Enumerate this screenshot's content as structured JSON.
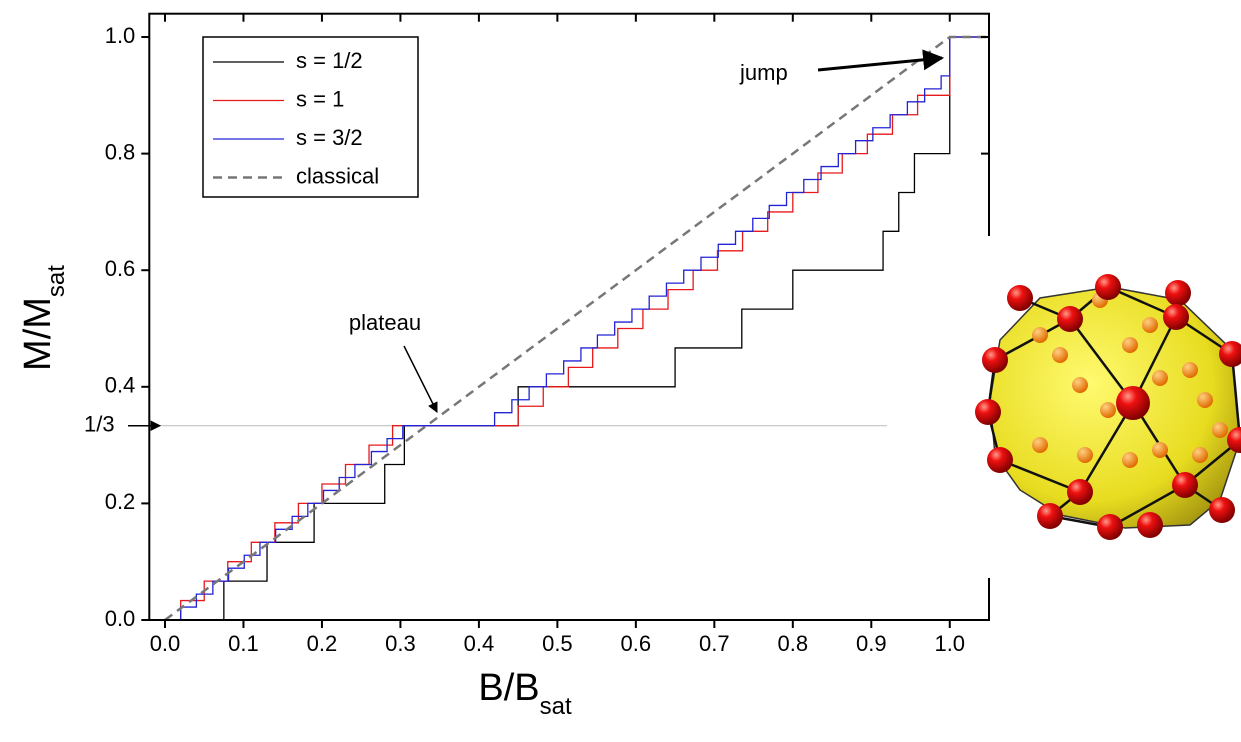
{
  "chart_data": {
    "type": "line",
    "x_label": [
      "B/B",
      "sat"
    ],
    "y_label": [
      "M/M",
      "sat"
    ],
    "xlim": [
      -0.02,
      1.05
    ],
    "ylim": [
      0,
      1.04
    ],
    "xticks": [
      {
        "value": 0,
        "label": "0.0"
      },
      {
        "value": 0.1,
        "label": "0.1"
      },
      {
        "value": 0.2,
        "label": "0.2"
      },
      {
        "value": 0.3,
        "label": "0.3"
      },
      {
        "value": 0.4,
        "label": "0.4"
      },
      {
        "value": 0.5,
        "label": "0.5"
      },
      {
        "value": 0.6,
        "label": "0.6"
      },
      {
        "value": 0.7,
        "label": "0.7"
      },
      {
        "value": 0.8,
        "label": "0.8"
      },
      {
        "value": 0.9,
        "label": "0.9"
      },
      {
        "value": 1,
        "label": "1.0"
      }
    ],
    "yticks": [
      {
        "value": 0,
        "label": "0.0"
      },
      {
        "value": 0.2,
        "label": "0.2"
      },
      {
        "value": 0.4,
        "label": "0.4"
      },
      {
        "value": 0.6,
        "label": "0.6"
      },
      {
        "value": 0.8,
        "label": "0.8"
      },
      {
        "value": 1,
        "label": "1.0"
      }
    ],
    "legend": "upper left",
    "series": [
      {
        "name": "s = 1/2",
        "color": "#000000",
        "drawstyle": "steps-post",
        "dash": false,
        "x": [
          0,
          0.075,
          0.13,
          0.19,
          0.28,
          0.305,
          0.45,
          0.65,
          0.735,
          0.8,
          0.915,
          0.935,
          0.955,
          1.0,
          1.05
        ],
        "values": [
          0,
          0.0667,
          0.1333,
          0.2,
          0.2667,
          0.3333,
          0.4,
          0.4667,
          0.5333,
          0.6,
          0.6667,
          0.7333,
          0.8,
          1.0,
          1.0
        ]
      },
      {
        "name": "s = 1",
        "color": "#e8191b",
        "drawstyle": "steps-post",
        "dash": false,
        "x": [
          0,
          0.02,
          0.05,
          0.08,
          0.11,
          0.14,
          0.17,
          0.2,
          0.23,
          0.26,
          0.29,
          0.45,
          0.482,
          0.514,
          0.545,
          0.577,
          0.609,
          0.641,
          0.673,
          0.704,
          0.736,
          0.768,
          0.8,
          0.832,
          0.863,
          0.895,
          0.927,
          0.959,
          1.0,
          1.05
        ],
        "values": [
          0,
          0.0333,
          0.0667,
          0.1,
          0.1333,
          0.1667,
          0.2,
          0.2333,
          0.2667,
          0.3,
          0.3333,
          0.3667,
          0.4,
          0.4333,
          0.4667,
          0.5,
          0.5333,
          0.5667,
          0.6,
          0.6333,
          0.6667,
          0.7,
          0.7333,
          0.7667,
          0.8,
          0.8333,
          0.8667,
          0.9,
          1.0,
          1.0
        ]
      },
      {
        "name": "s = 3/2",
        "color": "#2323d6",
        "drawstyle": "steps-post",
        "dash": false,
        "x": [
          0,
          0.02,
          0.04,
          0.061,
          0.081,
          0.101,
          0.121,
          0.141,
          0.162,
          0.182,
          0.202,
          0.222,
          0.242,
          0.263,
          0.283,
          0.303,
          0.42,
          0.442,
          0.464,
          0.486,
          0.508,
          0.53,
          0.551,
          0.573,
          0.595,
          0.617,
          0.639,
          0.661,
          0.683,
          0.705,
          0.727,
          0.749,
          0.77,
          0.792,
          0.814,
          0.836,
          0.858,
          0.88,
          0.902,
          0.924,
          0.946,
          0.968,
          0.989,
          1.0,
          1.05
        ],
        "values": [
          0,
          0.0222,
          0.0444,
          0.0667,
          0.0889,
          0.1111,
          0.1333,
          0.1556,
          0.1778,
          0.2,
          0.2222,
          0.2444,
          0.2667,
          0.2889,
          0.3111,
          0.3333,
          0.3556,
          0.3778,
          0.4,
          0.4222,
          0.4444,
          0.4667,
          0.4889,
          0.5111,
          0.5333,
          0.5556,
          0.5778,
          0.6,
          0.6222,
          0.6444,
          0.6667,
          0.6889,
          0.7111,
          0.7333,
          0.7556,
          0.7778,
          0.8,
          0.8222,
          0.8444,
          0.8667,
          0.8889,
          0.9111,
          0.9333,
          1.0,
          1.0
        ]
      },
      {
        "name": "classical",
        "color": "#777777",
        "drawstyle": "default",
        "dash": true,
        "x": [
          0,
          1.0,
          1.05
        ],
        "values": [
          0,
          1.0,
          1.0
        ]
      }
    ],
    "reference_line": {
      "value": 0.3333,
      "label": "1/3",
      "color": "#bbbbbb"
    },
    "annotations": [
      "jump",
      "plateau"
    ]
  }
}
